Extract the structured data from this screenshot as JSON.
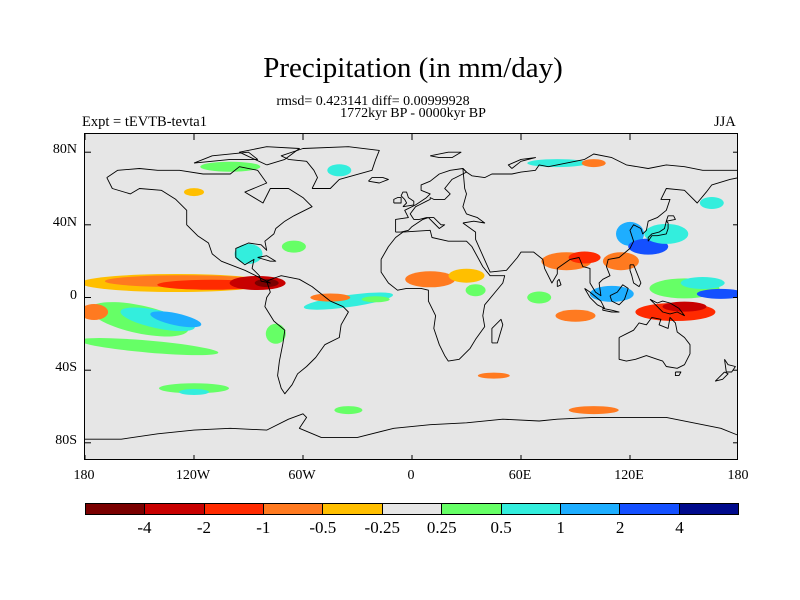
{
  "title": "Precipitation (in mm/day)",
  "stats": "rmsd= 0.423141 diff= 0.00999928",
  "period": "1772kyr BP - 0000kyr BP",
  "expt": "Expt = tEVTB-tevta1",
  "season": "JJA",
  "chart_data": {
    "type": "heatmap",
    "variable": "Precipitation difference",
    "units": "mm/day",
    "x_range": [
      -180,
      180
    ],
    "y_range": [
      -90,
      90
    ],
    "lat_labels": [
      "80N",
      "40N",
      "0",
      "40S",
      "80S"
    ],
    "lon_labels": [
      "180",
      "120W",
      "60W",
      "0",
      "60E",
      "120E",
      "180"
    ],
    "levels": [
      -4,
      -2,
      -1,
      -0.5,
      -0.25,
      0.25,
      0.5,
      1,
      2,
      4
    ],
    "level_labels": [
      "-4",
      "-2",
      "-1",
      "-0.5",
      "-0.25",
      "0.25",
      "0.5",
      "1",
      "2",
      "4"
    ],
    "colors": [
      "#7a0000",
      "#c80000",
      "#ff2a00",
      "#ff7a20",
      "#ffbf00",
      "#e6e6e6",
      "#66ff66",
      "#33eedd",
      "#1eaeff",
      "#1450ff",
      "#000a8c"
    ]
  }
}
